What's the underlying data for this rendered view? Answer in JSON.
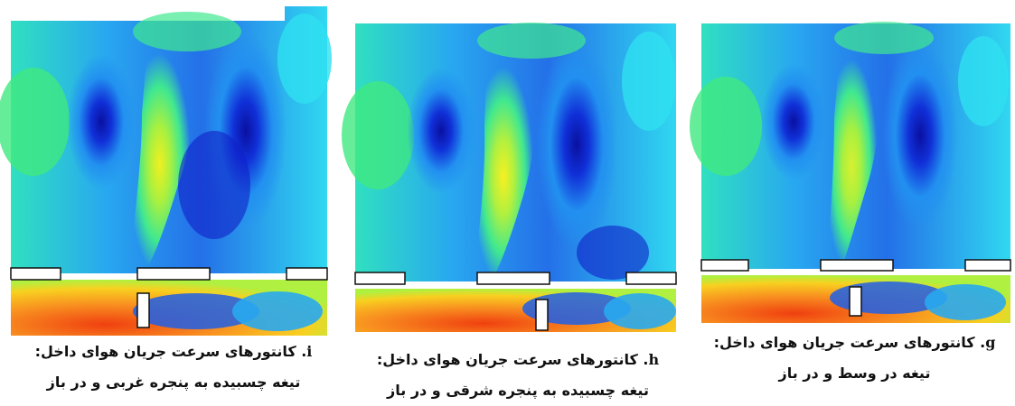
{
  "panels": [
    {
      "letter": "i",
      "caption_line1": ". کانتورهای سرعت جریان هوای داخل:",
      "caption_line2": "تیغه چسبیده به پنجره غربی و در باز"
    },
    {
      "letter": "h",
      "caption_line1": ". کانتورهای سرعت جریان هوای داخل:",
      "caption_line2": "تیغه چسبیده به پنجره شرقی و در باز"
    },
    {
      "letter": "g",
      "caption_line1": ". کانتورهای سرعت جریان هوای داخل:",
      "caption_line2": "تیغه در وسط و در باز"
    }
  ],
  "colors": {
    "dark_blue": "#1020c8",
    "blue": "#1e5fe8",
    "light_blue": "#28a8f0",
    "cyan": "#30e0f0",
    "green": "#40e880",
    "yellow_green": "#b0f040",
    "yellow": "#f8f020",
    "orange": "#f89020",
    "red": "#f04010"
  }
}
